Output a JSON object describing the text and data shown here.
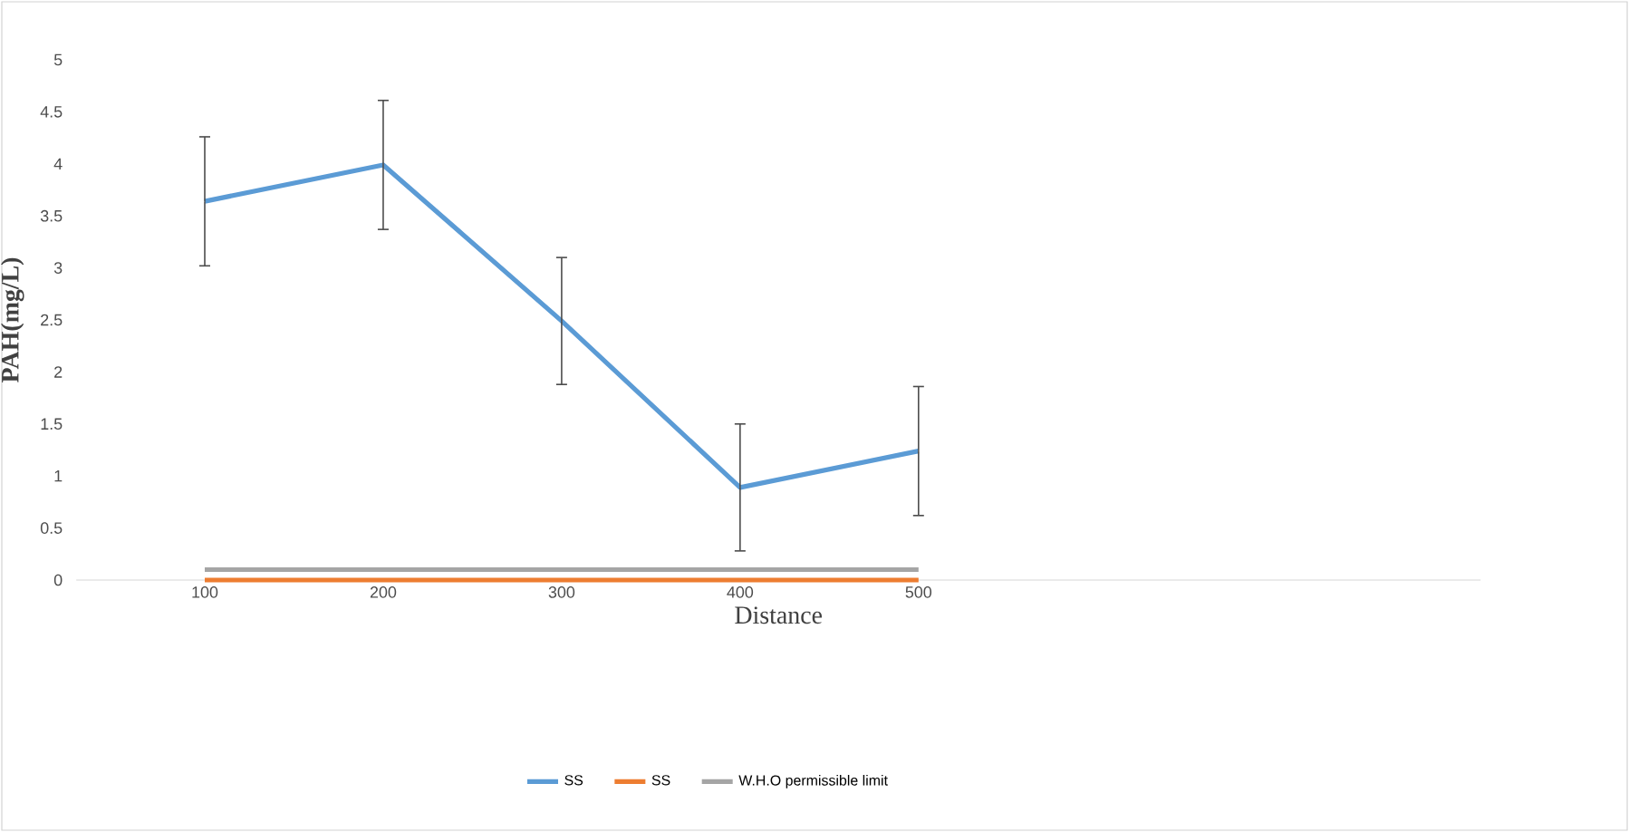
{
  "chart_data": {
    "type": "line",
    "xlabel": "Distance",
    "ylabel": "PAH(mg/L)",
    "categories": [
      "100",
      "200",
      "300",
      "400",
      "500"
    ],
    "series": [
      {
        "name": "SS",
        "color": "#5b9bd5",
        "values": [
          3.64,
          3.99,
          2.49,
          0.89,
          1.24
        ],
        "errors": [
          0.62,
          0.62,
          0.61,
          0.61,
          0.62
        ]
      },
      {
        "name": "SS",
        "color": "#ed7d31",
        "values": [
          0,
          0,
          0,
          0,
          0
        ]
      },
      {
        "name": "W.H.O permissible limit",
        "color": "#a5a5a5",
        "values": [
          0.1,
          0.1,
          0.1,
          0.1,
          0.1
        ]
      }
    ],
    "ylim": [
      0,
      5
    ],
    "yticks": [
      0,
      0.5,
      1,
      1.5,
      2,
      2.5,
      3,
      3.5,
      4,
      4.5,
      5
    ],
    "legend": "bottom",
    "marker": "none",
    "line_style": "solid"
  }
}
